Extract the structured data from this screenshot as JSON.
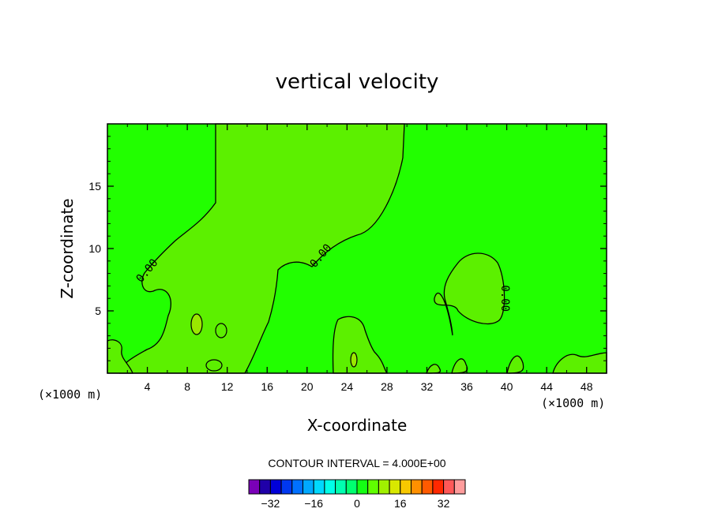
{
  "chart_data": {
    "type": "contour",
    "title": "vertical velocity",
    "xlabel": "X-coordinate",
    "ylabel": "Z-coordinate",
    "x_unit_left": "(×1000 m)",
    "x_unit_right": "(×1000 m)",
    "xlim": [
      0,
      50
    ],
    "ylim": [
      0,
      20
    ],
    "x_ticks": [
      4,
      8,
      12,
      16,
      20,
      24,
      28,
      32,
      36,
      40,
      44,
      48
    ],
    "y_ticks": [
      5,
      10,
      15
    ],
    "contour_interval_text": "CONTOUR INTERVAL = 4.000E+00",
    "contour_labels": [
      {
        "text": "0.00",
        "x": 4.0,
        "y": 8.2,
        "angle": -50
      },
      {
        "text": "0.00",
        "x": 21.4,
        "y": 9.4,
        "angle": -50
      },
      {
        "text": "0.00",
        "x": 39.8,
        "y": 6.0,
        "angle": 90
      }
    ],
    "colorbar": {
      "levels": [
        -40,
        -36,
        -32,
        -28,
        -24,
        -20,
        -16,
        -12,
        -8,
        -4,
        0,
        4,
        8,
        12,
        16,
        20,
        24,
        28,
        32,
        36,
        40
      ],
      "tick_values": [
        -32,
        -16,
        0,
        16,
        32
      ],
      "tick_labels": [
        "−32",
        "−16",
        "0",
        "16",
        "32"
      ],
      "colors": [
        "#7a00b8",
        "#1f00a8",
        "#0000d8",
        "#0038f0",
        "#0070ff",
        "#00a8ff",
        "#00d8ff",
        "#00ffe8",
        "#00ffb0",
        "#00ff70",
        "#14ff14",
        "#60ff00",
        "#a0f000",
        "#d8e800",
        "#f8c800",
        "#ff9000",
        "#ff5a00",
        "#ff2800",
        "#ff5858",
        "#ff9c9c"
      ]
    },
    "regions": {
      "background_color": "#22ff00",
      "positive_color": "#5cf000",
      "weak_color": "#9ae800"
    }
  }
}
